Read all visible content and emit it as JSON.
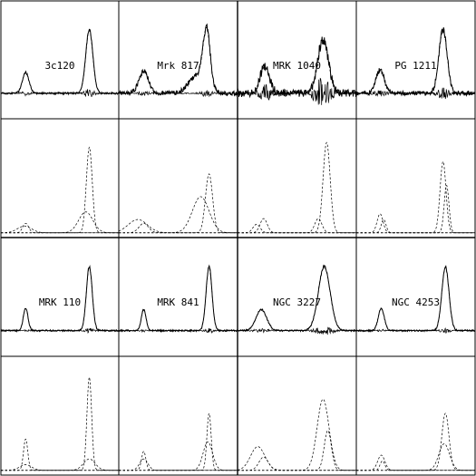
{
  "chart_data": {
    "type": "line",
    "title": "",
    "xlabel": "",
    "ylabel": "",
    "grid": false,
    "layout": "4 columns x 2 galaxy rows; each galaxy shows a fit panel (data + model, with residuals) above a component panel (dashed profiles)",
    "axis_ranges": {
      "x": [
        0,
        1
      ],
      "fit_panel_y": [
        -0.4,
        1.45
      ],
      "component_panel_y": [
        -0.05,
        1.2
      ]
    },
    "panels": [
      {
        "label": "3c120",
        "line1": {
          "center": 0.21,
          "amp": 0.33,
          "width": 0.028
        },
        "line2": {
          "center": 0.75,
          "amp": 1.0,
          "width": 0.03
        },
        "components": [
          {
            "center": 0.21,
            "amp": 0.1,
            "width": 0.025
          },
          {
            "center": 0.2,
            "amp": 0.07,
            "width": 0.06
          },
          {
            "center": 0.75,
            "amp": 0.9,
            "width": 0.025
          },
          {
            "center": 0.72,
            "amp": 0.22,
            "width": 0.06
          }
        ],
        "noise": 0.015,
        "residual_amp": 0.07
      },
      {
        "label": "Mrk 817",
        "line1": {
          "center": 0.21,
          "amp": 0.35,
          "width": 0.04
        },
        "line2": {
          "center": 0.74,
          "amp": 0.9,
          "width": 0.03
        },
        "line2_wing": {
          "center": 0.66,
          "amp": 0.28,
          "width": 0.07
        },
        "components": [
          {
            "center": 0.21,
            "amp": 0.1,
            "width": 0.04
          },
          {
            "center": 0.16,
            "amp": 0.14,
            "width": 0.08
          },
          {
            "center": 0.76,
            "amp": 0.62,
            "width": 0.03
          },
          {
            "center": 0.69,
            "amp": 0.38,
            "width": 0.07
          }
        ],
        "noise": 0.035,
        "residual_amp": 0.06
      },
      {
        "label": "MRK 1040",
        "line1": {
          "center": 0.23,
          "amp": 0.42,
          "width": 0.04
        },
        "line2": {
          "center": 0.72,
          "amp": 0.85,
          "width": 0.045
        },
        "components": [
          {
            "center": 0.22,
            "amp": 0.15,
            "width": 0.03
          },
          {
            "center": 0.16,
            "amp": 0.09,
            "width": 0.03
          },
          {
            "center": 0.75,
            "amp": 0.95,
            "width": 0.03
          },
          {
            "center": 0.68,
            "amp": 0.15,
            "width": 0.03
          }
        ],
        "noise": 0.06,
        "residual_amp": 0.28
      },
      {
        "label": "PG 1211",
        "line1": {
          "center": 0.2,
          "amp": 0.37,
          "width": 0.035
        },
        "line2": {
          "center": 0.73,
          "amp": 1.0,
          "width": 0.035
        },
        "components": [
          {
            "center": 0.2,
            "amp": 0.2,
            "width": 0.025
          },
          {
            "center": 0.23,
            "amp": 0.14,
            "width": 0.02
          },
          {
            "center": 0.73,
            "amp": 0.75,
            "width": 0.025
          },
          {
            "center": 0.76,
            "amp": 0.5,
            "width": 0.02
          }
        ],
        "noise": 0.035,
        "residual_amp": 0.1
      },
      {
        "label": "MRK 110",
        "line1": {
          "center": 0.21,
          "amp": 0.35,
          "width": 0.02
        },
        "line2": {
          "center": 0.75,
          "amp": 1.0,
          "width": 0.025
        },
        "components": [
          {
            "center": 0.21,
            "amp": 0.33,
            "width": 0.018
          },
          {
            "center": 0.21,
            "amp": 0.06,
            "width": 0.05
          },
          {
            "center": 0.75,
            "amp": 0.98,
            "width": 0.02
          },
          {
            "center": 0.75,
            "amp": 0.12,
            "width": 0.05
          }
        ],
        "noise": 0.012,
        "residual_amp": 0.04
      },
      {
        "label": "MRK 841",
        "line1": {
          "center": 0.21,
          "amp": 0.33,
          "width": 0.02
        },
        "line2": {
          "center": 0.76,
          "amp": 1.0,
          "width": 0.025
        },
        "components": [
          {
            "center": 0.21,
            "amp": 0.2,
            "width": 0.018
          },
          {
            "center": 0.21,
            "amp": 0.12,
            "width": 0.035
          },
          {
            "center": 0.76,
            "amp": 0.6,
            "width": 0.018
          },
          {
            "center": 0.75,
            "amp": 0.3,
            "width": 0.04
          }
        ],
        "noise": 0.012,
        "residual_amp": 0.04
      },
      {
        "label": "NGC 3227",
        "line1": {
          "center": 0.2,
          "amp": 0.33,
          "width": 0.045
        },
        "line2": {
          "center": 0.73,
          "amp": 1.0,
          "width": 0.05
        },
        "components": [
          {
            "center": 0.17,
            "amp": 0.25,
            "width": 0.06
          },
          {
            "center": 0.22,
            "amp": 0.14,
            "width": 0.04
          },
          {
            "center": 0.72,
            "amp": 0.75,
            "width": 0.05
          },
          {
            "center": 0.76,
            "amp": 0.42,
            "width": 0.03
          }
        ],
        "noise": 0.012,
        "residual_amp": 0.07
      },
      {
        "label": "NGC 4253",
        "line1": {
          "center": 0.21,
          "amp": 0.35,
          "width": 0.025
        },
        "line2": {
          "center": 0.75,
          "amp": 1.0,
          "width": 0.03
        },
        "components": [
          {
            "center": 0.21,
            "amp": 0.16,
            "width": 0.03
          },
          {
            "center": 0.22,
            "amp": 0.1,
            "width": 0.02
          },
          {
            "center": 0.75,
            "amp": 0.6,
            "width": 0.03
          },
          {
            "center": 0.74,
            "amp": 0.28,
            "width": 0.045
          }
        ],
        "noise": 0.012,
        "residual_amp": 0.04
      }
    ]
  }
}
